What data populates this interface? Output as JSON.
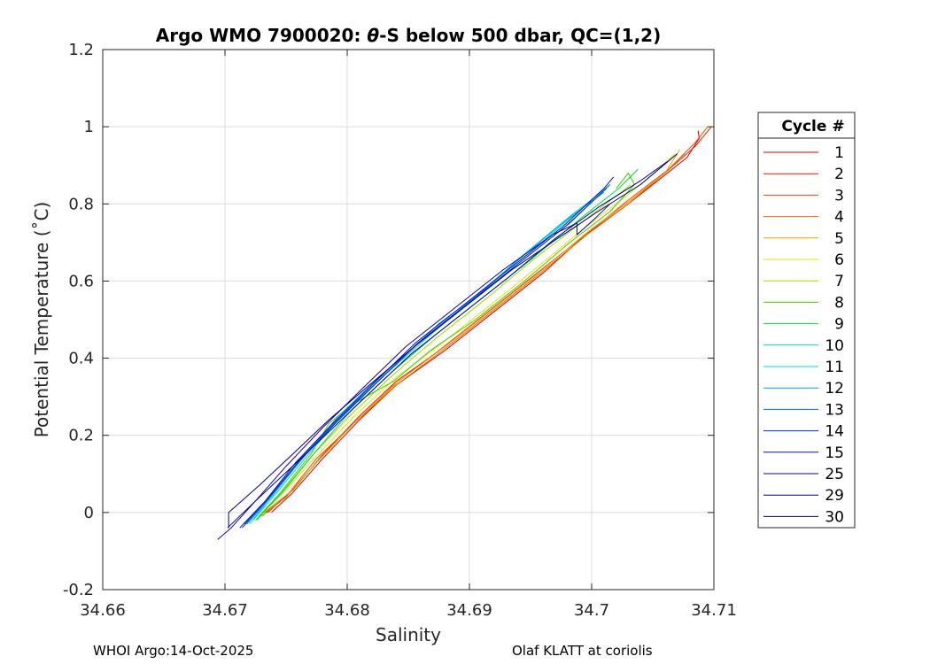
{
  "chart_data": {
    "type": "line",
    "title_prefix": "Argo WMO 7900020: ",
    "title_theta": "θ",
    "title_suffix": "-S below 500 dbar,  QC=(1,2)",
    "xlabel": "Salinity",
    "ylabel": "Potential Temperature (˚C)",
    "xlim": [
      34.66,
      34.71
    ],
    "ylim": [
      -0.2,
      1.2
    ],
    "xticks": [
      "34.66",
      "34.67",
      "34.68",
      "34.69",
      "34.7",
      "34.71"
    ],
    "xtick_values": [
      34.66,
      34.67,
      34.68,
      34.69,
      34.7,
      34.71
    ],
    "yticks": [
      "-0.2",
      "0",
      "0.2",
      "0.4",
      "0.6",
      "0.8",
      "1",
      "1.2"
    ],
    "ytick_values": [
      -0.2,
      0,
      0.2,
      0.4,
      0.6,
      0.8,
      1.0,
      1.2
    ],
    "grid": true,
    "legend_title": "Cycle #",
    "legend_position": "right",
    "series": [
      {
        "name": "1",
        "color": "#d40000",
        "x": [
          34.6738,
          34.6755,
          34.678,
          34.681,
          34.684,
          34.688,
          34.692,
          34.696,
          34.6995,
          34.703,
          34.7058,
          34.7078,
          34.7088,
          34.7087
        ],
        "y": [
          0.0,
          0.05,
          0.14,
          0.24,
          0.33,
          0.42,
          0.52,
          0.62,
          0.72,
          0.8,
          0.87,
          0.92,
          0.97,
          0.99
        ]
      },
      {
        "name": "2",
        "color": "#e81a00",
        "x": [
          34.6735,
          34.6756,
          34.678,
          34.681,
          34.684,
          34.688,
          34.692,
          34.696,
          34.6998,
          34.7032,
          34.706,
          34.7085,
          34.7098
        ],
        "y": [
          0.0,
          0.06,
          0.15,
          0.25,
          0.34,
          0.43,
          0.53,
          0.63,
          0.73,
          0.81,
          0.88,
          0.95,
          1.0
        ]
      },
      {
        "name": "3",
        "color": "#ec4a00",
        "x": [
          34.6733,
          34.6752,
          34.6775,
          34.6805,
          34.6838,
          34.6875,
          34.6915,
          34.6955,
          34.6995,
          34.703,
          34.7063,
          34.7085,
          34.7095
        ],
        "y": [
          0.0,
          0.05,
          0.14,
          0.23,
          0.33,
          0.42,
          0.52,
          0.62,
          0.72,
          0.81,
          0.89,
          0.96,
          1.0
        ]
      },
      {
        "name": "4",
        "color": "#e06800",
        "x": [
          34.673,
          34.675,
          34.6775,
          34.6805,
          34.684,
          34.6878,
          34.6918,
          34.6958,
          34.6996,
          34.703,
          34.706,
          34.7076
        ],
        "y": [
          -0.01,
          0.04,
          0.13,
          0.23,
          0.33,
          0.42,
          0.52,
          0.62,
          0.72,
          0.8,
          0.88,
          0.93
        ]
      },
      {
        "name": "5",
        "color": "#e6a800",
        "x": [
          34.6732,
          34.6752,
          34.6778,
          34.6808,
          34.6842,
          34.688,
          34.692,
          34.696,
          34.6998,
          34.7032,
          34.706,
          34.7072
        ],
        "y": [
          0.0,
          0.05,
          0.14,
          0.24,
          0.34,
          0.43,
          0.53,
          0.63,
          0.73,
          0.81,
          0.88,
          0.94
        ]
      },
      {
        "name": "6",
        "color": "#e6e600",
        "x": [
          34.673,
          34.675,
          34.6776,
          34.6806,
          34.684,
          34.6878,
          34.6918,
          34.6957,
          34.6995,
          34.7028,
          34.7055,
          34.7068
        ],
        "y": [
          0.0,
          0.06,
          0.15,
          0.25,
          0.35,
          0.44,
          0.54,
          0.64,
          0.74,
          0.82,
          0.89,
          0.93
        ]
      },
      {
        "name": "7",
        "color": "#a6d800",
        "x": [
          34.6728,
          34.6747,
          34.6772,
          34.6802,
          34.6835,
          34.6872,
          34.6912,
          34.695,
          34.6987,
          34.702,
          34.7032
        ],
        "y": [
          -0.01,
          0.05,
          0.15,
          0.25,
          0.35,
          0.45,
          0.55,
          0.65,
          0.74,
          0.82,
          0.85
        ]
      },
      {
        "name": "8",
        "color": "#40cc00",
        "x": [
          34.6725,
          34.6745,
          34.677,
          34.6785,
          34.68,
          34.6815,
          34.6838,
          34.6868,
          34.6905,
          34.6945,
          34.6982,
          34.7015,
          34.7035,
          34.703,
          34.702
        ],
        "y": [
          -0.02,
          0.05,
          0.15,
          0.23,
          0.27,
          0.3,
          0.34,
          0.42,
          0.5,
          0.6,
          0.7,
          0.78,
          0.85,
          0.88,
          0.84
        ]
      },
      {
        "name": "9",
        "color": "#00e040",
        "x": [
          34.6726,
          34.6746,
          34.6772,
          34.6802,
          34.6835,
          34.6872,
          34.6912,
          34.6952,
          34.699,
          34.7022,
          34.7038
        ],
        "y": [
          -0.02,
          0.05,
          0.15,
          0.26,
          0.36,
          0.46,
          0.56,
          0.66,
          0.76,
          0.84,
          0.89
        ]
      },
      {
        "name": "10",
        "color": "#00e0a0",
        "x": [
          34.6723,
          34.6742,
          34.6768,
          34.6798,
          34.6832,
          34.6868,
          34.6908,
          34.6948,
          34.6985,
          34.7015
        ],
        "y": [
          -0.02,
          0.05,
          0.15,
          0.26,
          0.36,
          0.46,
          0.57,
          0.67,
          0.77,
          0.85
        ]
      },
      {
        "name": "11",
        "color": "#00d8e6",
        "x": [
          34.672,
          34.674,
          34.6766,
          34.6796,
          34.6828,
          34.6862,
          34.6875,
          34.6905,
          34.6945,
          34.6983,
          34.7012
        ],
        "y": [
          -0.03,
          0.05,
          0.15,
          0.25,
          0.35,
          0.45,
          0.49,
          0.56,
          0.67,
          0.77,
          0.84
        ]
      },
      {
        "name": "12",
        "color": "#009ee6",
        "x": [
          34.6718,
          34.6738,
          34.6763,
          34.6793,
          34.6826,
          34.6862,
          34.6902,
          34.6942,
          34.698,
          34.701
        ],
        "y": [
          -0.03,
          0.04,
          0.14,
          0.25,
          0.35,
          0.45,
          0.55,
          0.66,
          0.76,
          0.83
        ]
      },
      {
        "name": "13",
        "color": "#0068e0",
        "x": [
          34.6716,
          34.6736,
          34.6762,
          34.6792,
          34.6825,
          34.6862,
          34.6902,
          34.6942,
          34.6982,
          34.7015
        ],
        "y": [
          -0.03,
          0.04,
          0.14,
          0.24,
          0.34,
          0.45,
          0.55,
          0.65,
          0.75,
          0.85
        ]
      },
      {
        "name": "14",
        "color": "#0030d8",
        "x": [
          34.6714,
          34.6734,
          34.676,
          34.679,
          34.6822,
          34.6858,
          34.6898,
          34.6938,
          34.6978,
          34.7012
        ],
        "y": [
          -0.04,
          0.03,
          0.13,
          0.23,
          0.33,
          0.44,
          0.54,
          0.64,
          0.74,
          0.84
        ]
      },
      {
        "name": "15",
        "color": "#0010c0",
        "x": [
          34.6712,
          34.6733,
          34.6758,
          34.6788,
          34.682,
          34.6856,
          34.6896,
          34.6936,
          34.6976,
          34.701,
          34.7018
        ],
        "y": [
          -0.04,
          0.03,
          0.13,
          0.23,
          0.33,
          0.44,
          0.54,
          0.64,
          0.74,
          0.84,
          0.87
        ]
      },
      {
        "name": "25",
        "color": "#1400a0",
        "x": [
          34.6694,
          34.6705,
          34.6725,
          34.675,
          34.678,
          34.6812,
          34.6848,
          34.6888,
          34.6928,
          34.6968,
          34.6988,
          34.6988,
          34.7002,
          34.7015
        ],
        "y": [
          -0.07,
          -0.04,
          0.03,
          0.12,
          0.22,
          0.32,
          0.43,
          0.53,
          0.63,
          0.72,
          0.75,
          0.72,
          0.76,
          0.8
        ]
      },
      {
        "name": "29",
        "color": "#000080",
        "x": [
          34.6703,
          34.6703,
          34.6728,
          34.6755,
          34.6785,
          34.6818,
          34.6855,
          34.6895,
          34.6935,
          34.6972,
          34.7005,
          34.704,
          34.707
        ],
        "y": [
          -0.04,
          0.0,
          0.07,
          0.15,
          0.24,
          0.33,
          0.43,
          0.53,
          0.63,
          0.71,
          0.78,
          0.85,
          0.93
        ]
      },
      {
        "name": "30",
        "color": "#000090",
        "x": [
          34.6702,
          34.6725,
          34.6752,
          34.6782,
          34.6815,
          34.6852,
          34.6892,
          34.6932,
          34.697,
          34.7005,
          34.704,
          34.7062
        ],
        "y": [
          -0.04,
          0.03,
          0.11,
          0.2,
          0.3,
          0.41,
          0.51,
          0.61,
          0.71,
          0.79,
          0.86,
          0.91
        ]
      }
    ]
  },
  "footer": {
    "left": "WHOI Argo:14-Oct-2025",
    "right": "Olaf KLATT at coriolis"
  }
}
